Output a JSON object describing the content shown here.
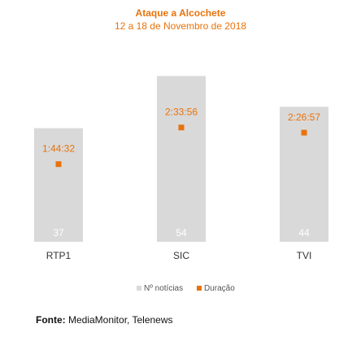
{
  "source": {
    "label": "Fonte:",
    "text": " MediaMonitor, Telenews"
  },
  "colors": {
    "bar": "#d9d9d9",
    "marker": "#e8730c",
    "value_text": "#ffffff",
    "axis_text": "#333333"
  },
  "chart_data": {
    "type": "bar",
    "title": "Ataque a Alcochete",
    "subtitle": "12 a 18 de Novembro de 2018",
    "categories": [
      "RTP1",
      "SIC",
      "TVI"
    ],
    "series": [
      {
        "name": "Nº notícias",
        "type": "bar",
        "values": [
          37,
          54,
          44
        ],
        "labels": [
          "37",
          "54",
          "44"
        ]
      },
      {
        "name": "Duração",
        "type": "marker",
        "values": [
          6272,
          9236,
          8817
        ],
        "labels": [
          "1:44:32",
          "2:33:56",
          "2:26:57"
        ]
      }
    ],
    "legend": "bottom",
    "grid": false
  }
}
